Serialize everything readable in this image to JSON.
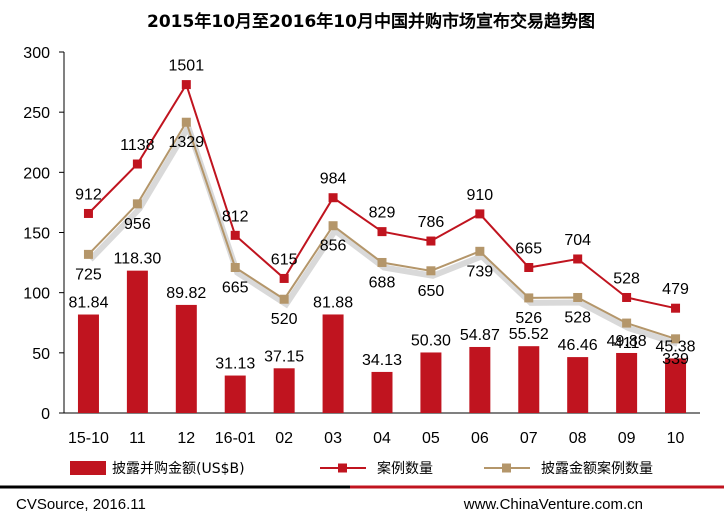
{
  "chart_data": {
    "type": "bar",
    "title": "2015年10月至2016年10月中国并购市场宣布交易趋势图",
    "categories": [
      "15-10",
      "11",
      "12",
      "16-01",
      "02",
      "03",
      "04",
      "05",
      "06",
      "07",
      "08",
      "09",
      "10"
    ],
    "yaxis": {
      "ylim": [
        0,
        300
      ],
      "ticks": [
        "0",
        "50",
        "100",
        "150",
        "200",
        "250",
        "300"
      ]
    },
    "series": [
      {
        "name": "披露并购金额(US$B)",
        "type": "bar",
        "values": [
          81.84,
          118.3,
          89.82,
          31.13,
          37.15,
          81.88,
          34.13,
          50.3,
          54.87,
          55.52,
          46.46,
          49.88,
          45.38
        ],
        "labels": [
          "81.84",
          "118.30",
          "89.82",
          "31.13",
          "37.15",
          "81.88",
          "34.13",
          "50.30",
          "54.87",
          "55.52",
          "46.46",
          "49.88",
          "45.38"
        ],
        "color": "#c0141f"
      },
      {
        "name": "案例数量",
        "type": "line",
        "values": [
          912,
          1138,
          1501,
          812,
          615,
          984,
          829,
          786,
          910,
          665,
          704,
          528,
          479
        ],
        "labels": [
          "912",
          "1138",
          "1501",
          "812",
          "615",
          "984",
          "829",
          "786",
          "910",
          "665",
          "704",
          "528",
          "479"
        ],
        "color": "#c0141f"
      },
      {
        "name": "披露金额案例数量",
        "type": "line",
        "values": [
          725,
          956,
          1329,
          665,
          520,
          856,
          688,
          650,
          739,
          526,
          528,
          411,
          339
        ],
        "labels": [
          "725",
          "956",
          "1329",
          "665",
          "520",
          "856",
          "688",
          "650",
          "739",
          "526",
          "528",
          "411",
          "339"
        ],
        "color": "#b4966a"
      }
    ],
    "legend_position": "bottom",
    "grid": false
  },
  "footer": {
    "source": "CVSource, 2016.11",
    "website": "www.ChinaVenture.com.cn"
  }
}
